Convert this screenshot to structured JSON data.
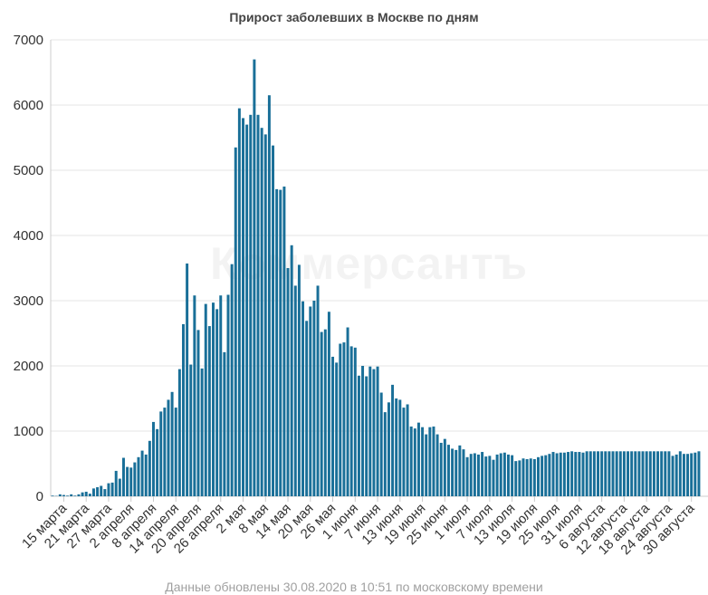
{
  "chart_data": {
    "type": "bar",
    "title": "Прирост заболевших в Москве по дням",
    "start_date": "2020-03-12",
    "end_date": "2020-08-30",
    "xlabel": "",
    "ylabel": "",
    "ylim": [
      0,
      7000
    ],
    "yticks": [
      0,
      1000,
      2000,
      3000,
      4000,
      5000,
      6000,
      7000
    ],
    "grid": true,
    "bar_color": "#196f98",
    "xtick_labels": [
      {
        "date": "2020-03-15",
        "label": "15 марта"
      },
      {
        "date": "2020-03-21",
        "label": "21 марта"
      },
      {
        "date": "2020-03-27",
        "label": "27 марта"
      },
      {
        "date": "2020-04-02",
        "label": "2 апреля"
      },
      {
        "date": "2020-04-08",
        "label": "8 апреля"
      },
      {
        "date": "2020-04-14",
        "label": "14 апреля"
      },
      {
        "date": "2020-04-20",
        "label": "20 апреля"
      },
      {
        "date": "2020-04-26",
        "label": "26 апреля"
      },
      {
        "date": "2020-05-02",
        "label": "2 мая"
      },
      {
        "date": "2020-05-08",
        "label": "8 мая"
      },
      {
        "date": "2020-05-14",
        "label": "14 мая"
      },
      {
        "date": "2020-05-20",
        "label": "20 мая"
      },
      {
        "date": "2020-05-26",
        "label": "26 мая"
      },
      {
        "date": "2020-06-01",
        "label": "1 июня"
      },
      {
        "date": "2020-06-07",
        "label": "7 июня"
      },
      {
        "date": "2020-06-13",
        "label": "13 июня"
      },
      {
        "date": "2020-06-19",
        "label": "19 июня"
      },
      {
        "date": "2020-06-25",
        "label": "25 июня"
      },
      {
        "date": "2020-07-01",
        "label": "1 июля"
      },
      {
        "date": "2020-07-07",
        "label": "7 июля"
      },
      {
        "date": "2020-07-13",
        "label": "13 июля"
      },
      {
        "date": "2020-07-19",
        "label": "19 июля"
      },
      {
        "date": "2020-07-25",
        "label": "25 июля"
      },
      {
        "date": "2020-07-31",
        "label": "31 июля"
      },
      {
        "date": "2020-08-06",
        "label": "6 августа"
      },
      {
        "date": "2020-08-12",
        "label": "12 августа"
      },
      {
        "date": "2020-08-18",
        "label": "18 августа"
      },
      {
        "date": "2020-08-24",
        "label": "24 августа"
      },
      {
        "date": "2020-08-30",
        "label": "30 августа"
      }
    ],
    "values": [
      10,
      5,
      30,
      20,
      10,
      30,
      10,
      30,
      60,
      70,
      40,
      120,
      140,
      160,
      110,
      200,
      210,
      390,
      270,
      590,
      450,
      440,
      520,
      600,
      700,
      640,
      850,
      1140,
      1030,
      1300,
      1360,
      1480,
      1600,
      1360,
      1950,
      2640,
      3570,
      2020,
      3080,
      2550,
      1960,
      2950,
      2610,
      2970,
      2870,
      3080,
      2210,
      3090,
      3560,
      5350,
      5950,
      5800,
      5700,
      5850,
      6700,
      5850,
      5650,
      5550,
      6150,
      5380,
      4710,
      4700,
      4750,
      3500,
      3850,
      3230,
      3550,
      2990,
      2690,
      2910,
      3000,
      3230,
      2520,
      2560,
      2830,
      2140,
      2050,
      2340,
      2360,
      2590,
      2300,
      2280,
      1850,
      2000,
      1840,
      1990,
      1950,
      1990,
      1590,
      1290,
      1440,
      1710,
      1500,
      1480,
      1360,
      1410,
      1070,
      1040,
      1130,
      1060,
      950,
      1060,
      1070,
      950,
      820,
      880,
      790,
      730,
      710,
      780,
      720,
      600,
      650,
      660,
      640,
      680,
      610,
      620,
      560,
      640,
      660,
      670,
      640,
      630,
      540,
      550,
      580,
      570,
      580,
      570,
      600,
      620,
      630,
      650,
      680,
      660,
      670,
      670,
      680,
      690,
      680,
      680,
      670,
      690,
      690,
      690,
      690,
      690,
      690,
      690,
      690,
      690,
      690,
      690,
      690,
      690,
      690,
      690,
      690,
      690,
      690,
      690,
      690,
      690,
      690,
      690,
      620,
      640,
      690,
      650,
      650,
      660,
      670,
      690
    ]
  },
  "watermark": "Коммерсантъ",
  "footer": "Данные обновлены 30.08.2020 в 10:51 по московскому времени"
}
